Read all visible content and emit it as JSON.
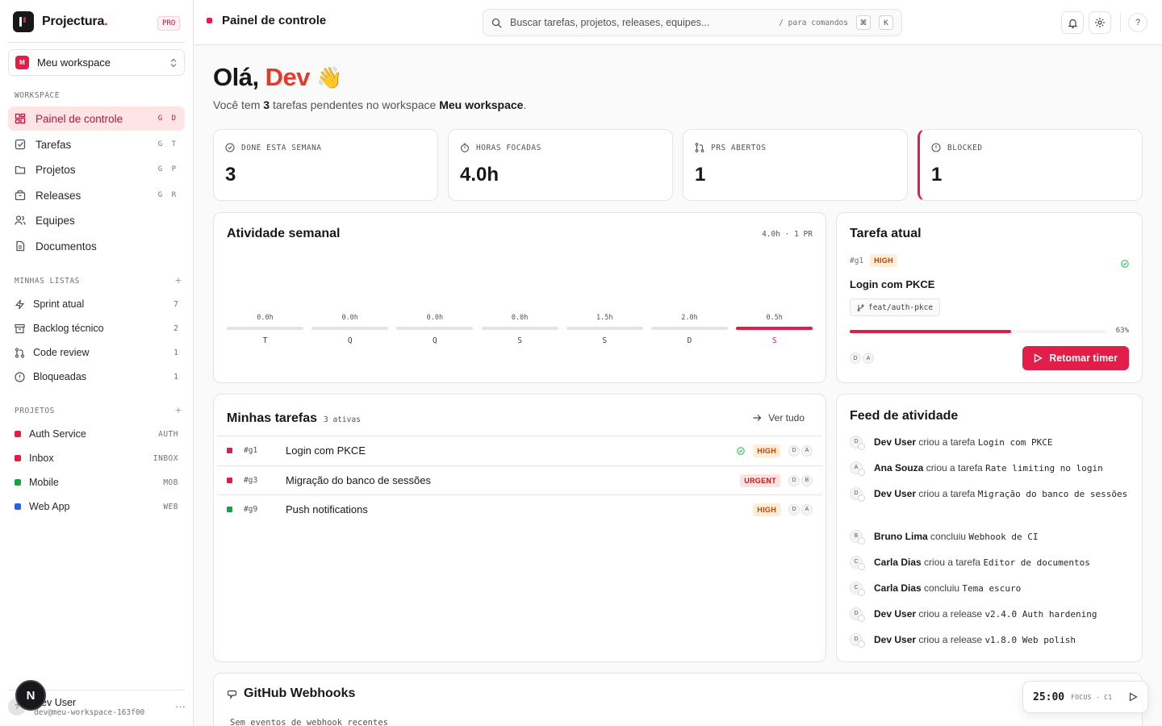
{
  "brand": {
    "name": "Projectura",
    "dot": ".",
    "plan": "PRO"
  },
  "workspace": {
    "avatar": "M",
    "name": "Meu workspace"
  },
  "sidebar": {
    "workspace_label": "WORKSPACE",
    "nav": [
      {
        "label": "Painel de controle",
        "shortcut": "G D",
        "icon": "grid-icon",
        "active": true
      },
      {
        "label": "Tarefas",
        "shortcut": "G T",
        "icon": "checkbox-icon"
      },
      {
        "label": "Projetos",
        "shortcut": "G P",
        "icon": "folder-icon"
      },
      {
        "label": "Releases",
        "shortcut": "G R",
        "icon": "package-icon"
      },
      {
        "label": "Equipes",
        "shortcut": "",
        "icon": "users-icon"
      },
      {
        "label": "Documentos",
        "shortcut": "",
        "icon": "file-icon"
      }
    ],
    "lists_label": "MINHAS LISTAS",
    "lists": [
      {
        "label": "Sprint atual",
        "count": "7",
        "icon": "zap-icon"
      },
      {
        "label": "Backlog técnico",
        "count": "2",
        "icon": "archive-icon"
      },
      {
        "label": "Code review",
        "count": "1",
        "icon": "git-pull-request-icon"
      },
      {
        "label": "Bloqueadas",
        "count": "1",
        "icon": "alert-circle-icon"
      }
    ],
    "projects_label": "PROJETOS",
    "projects": [
      {
        "label": "Auth Service",
        "code": "AUTH",
        "color": "#e11d48"
      },
      {
        "label": "Inbox",
        "code": "INBOX",
        "color": "#e11d48"
      },
      {
        "label": "Mobile",
        "code": "MOB",
        "color": "#16a34a"
      },
      {
        "label": "Web App",
        "code": "WEB",
        "color": "#2563eb"
      }
    ]
  },
  "user": {
    "avatar": "?",
    "name": "Dev User",
    "email": "dev@meu-workspace-163f00",
    "fab": "N"
  },
  "header": {
    "title": "Painel de controle",
    "search_placeholder": "Buscar tarefas, projetos, releases, equipes...",
    "search_hint": "/ para comandos",
    "key1": "⌘",
    "key2": "K",
    "help": "?"
  },
  "greeting": {
    "prefix": "Olá,",
    "name": "Dev",
    "emoji": "👋",
    "sub_pre": "Você tem",
    "count": "3",
    "sub_mid": "tarefas pendentes no workspace",
    "workspace": "Meu workspace",
    "sub_end": "."
  },
  "stats": [
    {
      "label": "DONE ESTA SEMANA",
      "value": "3",
      "icon": "check-circle-icon"
    },
    {
      "label": "HORAS FOCADAS",
      "value": "4.0h",
      "icon": "timer-icon"
    },
    {
      "label": "PRS ABERTOS",
      "value": "1",
      "icon": "git-pull-request-icon"
    },
    {
      "label": "BLOCKED",
      "value": "1",
      "icon": "alert-circle-icon"
    }
  ],
  "weekly": {
    "title": "Atividade semanal",
    "meta": "4.0h · 1 PR",
    "days": [
      {
        "day": "T",
        "value": "0.0h",
        "hours": 0
      },
      {
        "day": "Q",
        "value": "0.0h",
        "hours": 0
      },
      {
        "day": "Q",
        "value": "0.0h",
        "hours": 0
      },
      {
        "day": "S",
        "value": "0.0h",
        "hours": 0
      },
      {
        "day": "S",
        "value": "1.5h",
        "hours": 1.5
      },
      {
        "day": "D",
        "value": "2.0h",
        "hours": 2.0
      },
      {
        "day": "S",
        "value": "0.5h",
        "hours": 0.5,
        "today": true
      }
    ]
  },
  "current_task": {
    "title": "Tarefa atual",
    "id": "#g1",
    "priority": "HIGH",
    "name": "Login com PKCE",
    "branch": "feat/auth-pkce",
    "progress": 63,
    "progress_label": "63%",
    "assignees": [
      "D",
      "A"
    ],
    "action": "Retomar timer"
  },
  "my_tasks": {
    "title": "Minhas tarefas",
    "count": "3 ativas",
    "see_all": "Ver tudo",
    "rows": [
      {
        "id": "#g1",
        "title": "Login com PKCE",
        "priority": "HIGH",
        "prio_class": "high",
        "color": "#e11d48",
        "check": true,
        "assignees": [
          "D",
          "A"
        ]
      },
      {
        "id": "#g3",
        "title": "Migração do banco de sessões",
        "priority": "URGENT",
        "prio_class": "urgent",
        "color": "#e11d48",
        "check": false,
        "assignees": [
          "D",
          "B"
        ]
      },
      {
        "id": "#g9",
        "title": "Push notifications",
        "priority": "HIGH",
        "prio_class": "high",
        "color": "#16a34a",
        "check": false,
        "assignees": [
          "D",
          "A"
        ]
      }
    ]
  },
  "feed": {
    "title": "Feed de atividade",
    "items": [
      {
        "av": "D",
        "who": "Dev User",
        "action": "criou a tarefa",
        "obj": "Login com PKCE"
      },
      {
        "av": "A",
        "who": "Ana Souza",
        "action": "criou a tarefa",
        "obj": "Rate limiting no login"
      },
      {
        "av": "D",
        "who": "Dev User",
        "action": "criou a tarefa",
        "obj": "Migração do banco de sessões"
      },
      {
        "av": "B",
        "who": "Bruno Lima",
        "action": "concluiu",
        "obj": "Webhook de CI"
      },
      {
        "av": "C",
        "who": "Carla Dias",
        "action": "criou a tarefa",
        "obj": "Editor de documentos"
      },
      {
        "av": "C",
        "who": "Carla Dias",
        "action": "concluiu",
        "obj": "Tema escuro"
      },
      {
        "av": "D",
        "who": "Dev User",
        "action": "criou a release",
        "obj": "v2.4.0 Auth hardening"
      },
      {
        "av": "D",
        "who": "Dev User",
        "action": "criou a release",
        "obj": "v1.8.0 Web polish"
      }
    ]
  },
  "webhooks": {
    "title": "GitHub Webhooks",
    "empty": "Sem eventos de webhook recentes"
  },
  "timer": {
    "time": "25:00",
    "label": "FOCUS · C1"
  },
  "colors": {
    "accent": "#e11d48",
    "greeting_name": "#e23a2d"
  }
}
